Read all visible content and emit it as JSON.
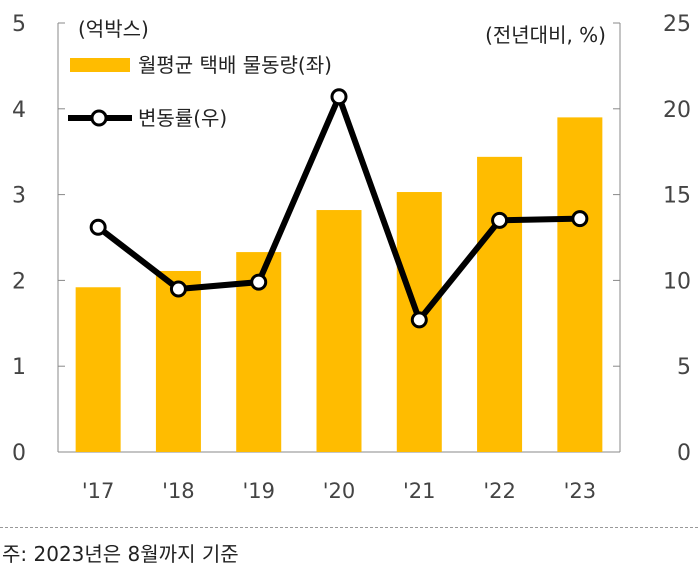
{
  "chart_data": {
    "type": "bar+line",
    "categories": [
      "'17",
      "'18",
      "'19",
      "'20",
      "'21",
      "'22",
      "'23"
    ],
    "series": [
      {
        "name": "월평균 택배 물동량(좌)",
        "type": "bar",
        "axis": "left",
        "values": [
          1.92,
          2.11,
          2.33,
          2.82,
          3.03,
          3.44,
          3.9
        ]
      },
      {
        "name": "변동률(우)",
        "type": "line",
        "axis": "right",
        "values": [
          13.1,
          9.5,
          9.9,
          20.7,
          7.7,
          13.5,
          13.6
        ]
      }
    ],
    "left_axis": {
      "unit_label": "(억박스)",
      "ylim": [
        0,
        5
      ],
      "ticks": [
        "0",
        "1",
        "2",
        "3",
        "4",
        "5"
      ]
    },
    "right_axis": {
      "unit_label": "(전년대비, %)",
      "ylim": [
        0,
        25
      ],
      "ticks": [
        "0",
        "5",
        "10",
        "15",
        "20",
        "25"
      ]
    },
    "legend": {
      "placement": "top-left"
    },
    "colors": {
      "bar": "#FFBC00",
      "line": "#000000",
      "marker_fill": "#ffffff"
    },
    "footnote": "주: 2023년은 8월까지 기준"
  }
}
